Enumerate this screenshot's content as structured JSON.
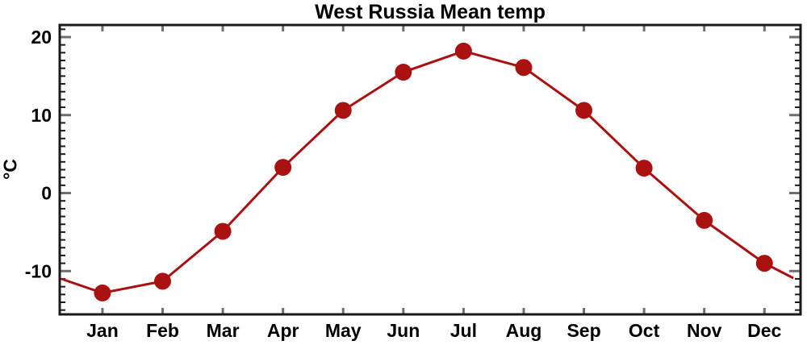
{
  "chart_data": {
    "type": "line",
    "title": "West Russia Mean temp",
    "ylabel": "°C",
    "xlabel": "",
    "categories": [
      "Jan",
      "Feb",
      "Mar",
      "Apr",
      "May",
      "Jun",
      "Jul",
      "Aug",
      "Sep",
      "Oct",
      "Nov",
      "Dec"
    ],
    "x_months": [
      1,
      2,
      3,
      4,
      5,
      6,
      7,
      8,
      9,
      10,
      11,
      12
    ],
    "values": [
      -12.8,
      -11.3,
      -4.9,
      3.3,
      10.6,
      15.5,
      18.2,
      16.1,
      10.6,
      3.2,
      -3.5,
      -9.0
    ],
    "edge_points": [
      {
        "x": 0.32,
        "value": -11.0
      },
      {
        "x": 12.48,
        "value": -10.9
      }
    ],
    "yticks_major": [
      20,
      10,
      0,
      -10
    ],
    "y_minor_step": 1,
    "ylim": [
      -15.55,
      21.55
    ],
    "xlim": [
      0.29,
      12.6
    ],
    "grid": false,
    "legend": "none",
    "line_color": "#AA1111",
    "marker_color": "#AA1111",
    "axis_color": "#1A1A1A",
    "major_tick_color": "#6E6E6E",
    "minor_tick_color": "#1A1A1A",
    "background_color": "#FFFFFF"
  }
}
